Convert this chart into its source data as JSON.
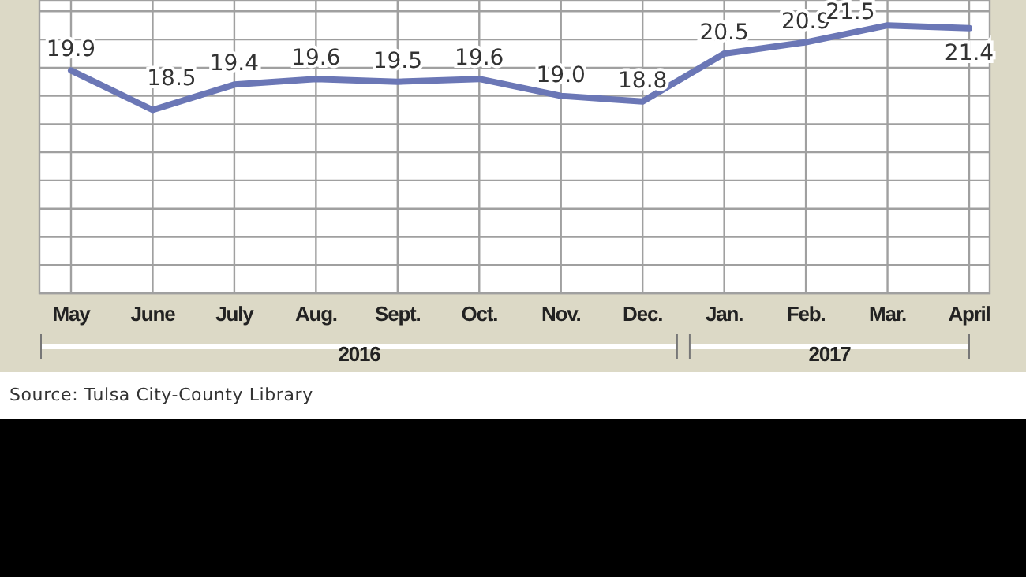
{
  "chart_data": {
    "type": "line",
    "categories": [
      "May",
      "June",
      "July",
      "Aug.",
      "Sept.",
      "Oct.",
      "Nov.",
      "Dec.",
      "Jan.",
      "Feb.",
      "Mar.",
      "April"
    ],
    "series": [
      {
        "color": "#6b77b6",
        "values": [
          19.9,
          18.5,
          19.4,
          19.6,
          19.5,
          19.6,
          19.0,
          18.8,
          20.5,
          20.9,
          21.5,
          21.4
        ],
        "value_labels": [
          "19.9",
          "18.5",
          "19.4",
          "19.6",
          "19.5",
          "19.6",
          "19.0",
          "18.8",
          "20.5",
          "20.9",
          "21.5",
          "21.4"
        ]
      }
    ],
    "ylim": [
      12,
      22.4
    ],
    "grid": true,
    "marker": "none",
    "line_style": "solid",
    "tick_labels": "x",
    "annotations": [
      "2016",
      "2017",
      "Source: Tulsa City-County Library"
    ]
  }
}
